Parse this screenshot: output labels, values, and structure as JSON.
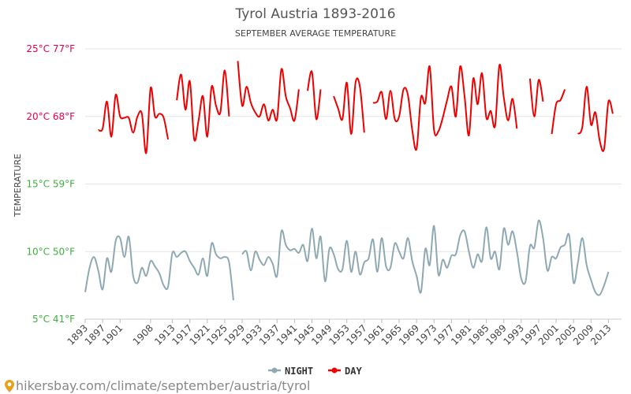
{
  "colors": {
    "night": "#8fa9b3",
    "day": "#ee0000",
    "grid": "#e6e6e6",
    "warm_label": "#e3004f",
    "cool_label": "#3db13d"
  },
  "footer": {
    "text": "hikersbay.com/climate/september/austria/tyrol",
    "icon": "map-pin-icon"
  },
  "chart_data": {
    "type": "line",
    "title": "Tyrol Austria 1893-2016",
    "subtitle": "SEPTEMBER AVERAGE TEMPERATURE",
    "ylabel": "TEMPERATURE",
    "xlabel": "",
    "ylim": [
      5,
      25
    ],
    "xlim": [
      1893,
      2016
    ],
    "grid": true,
    "legend_position": "bottom-center",
    "y_ticks": [
      {
        "value": 25,
        "label": "25°C 77°F",
        "tone": "warm"
      },
      {
        "value": 20,
        "label": "20°C 68°F",
        "tone": "warm"
      },
      {
        "value": 15,
        "label": "15°C 59°F",
        "tone": "cool"
      },
      {
        "value": 10,
        "label": "10°C 50°F",
        "tone": "cool"
      },
      {
        "value": 5,
        "label": "5°C 41°F",
        "tone": "cool"
      }
    ],
    "x_ticks": [
      "1893",
      "1897",
      "1901",
      "1908",
      "1913",
      "1917",
      "1921",
      "1925",
      "1929",
      "1933",
      "1937",
      "1941",
      "1945",
      "1949",
      "1953",
      "1957",
      "1961",
      "1965",
      "1969",
      "1973",
      "1977",
      "1981",
      "1985",
      "1989",
      "1993",
      "1997",
      "2001",
      "2005",
      "2009",
      "2013"
    ],
    "series": [
      {
        "name": "DAY",
        "segments": [
          [
            [
              1896,
              19.0
            ],
            [
              1897,
              19.1
            ],
            [
              1898,
              21.1
            ],
            [
              1899,
              18.5
            ],
            [
              1900,
              21.6
            ],
            [
              1901,
              20.0
            ],
            [
              1902,
              19.9
            ],
            [
              1903,
              19.9
            ],
            [
              1904,
              18.8
            ],
            [
              1905,
              20.0
            ],
            [
              1906,
              20.2
            ],
            [
              1907,
              17.3
            ],
            [
              1908,
              22.1
            ],
            [
              1909,
              20.0
            ],
            [
              1910,
              20.2
            ],
            [
              1911,
              19.9
            ],
            [
              1912,
              18.3
            ]
          ],
          [
            [
              1914,
              21.2
            ],
            [
              1915,
              23.1
            ],
            [
              1916,
              20.5
            ],
            [
              1917,
              22.6
            ],
            [
              1918,
              18.3
            ],
            [
              1919,
              19.7
            ],
            [
              1920,
              21.5
            ],
            [
              1921,
              18.5
            ],
            [
              1922,
              22.2
            ],
            [
              1923,
              20.8
            ],
            [
              1924,
              20.3
            ],
            [
              1925,
              23.4
            ],
            [
              1926,
              20.0
            ]
          ],
          [
            [
              1928,
              24.1
            ],
            [
              1929,
              20.8
            ],
            [
              1930,
              22.2
            ],
            [
              1931,
              21.0
            ],
            [
              1932,
              20.3
            ],
            [
              1933,
              20.0
            ],
            [
              1934,
              20.9
            ],
            [
              1935,
              19.7
            ],
            [
              1936,
              20.5
            ],
            [
              1937,
              19.8
            ],
            [
              1938,
              23.5
            ],
            [
              1939,
              21.5
            ],
            [
              1940,
              20.6
            ],
            [
              1941,
              19.7
            ],
            [
              1942,
              22.0
            ]
          ],
          [
            [
              1944,
              21.9
            ],
            [
              1945,
              23.3
            ],
            [
              1946,
              19.8
            ],
            [
              1947,
              22.0
            ]
          ],
          [
            [
              1950,
              21.5
            ],
            [
              1951,
              20.6
            ],
            [
              1952,
              19.8
            ],
            [
              1953,
              22.5
            ],
            [
              1954,
              18.7
            ],
            [
              1955,
              22.5
            ],
            [
              1956,
              22.2
            ],
            [
              1957,
              18.8
            ]
          ],
          [
            [
              1959,
              21.0
            ],
            [
              1960,
              21.1
            ],
            [
              1961,
              21.8
            ],
            [
              1962,
              19.8
            ],
            [
              1963,
              21.9
            ],
            [
              1964,
              19.8
            ],
            [
              1965,
              20.0
            ],
            [
              1966,
              22.0
            ],
            [
              1967,
              21.6
            ],
            [
              1968,
              19.0
            ],
            [
              1969,
              17.6
            ],
            [
              1970,
              21.4
            ],
            [
              1971,
              21.0
            ],
            [
              1972,
              23.7
            ],
            [
              1973,
              19.0
            ],
            [
              1974,
              18.9
            ],
            [
              1975,
              19.9
            ],
            [
              1976,
              21.2
            ],
            [
              1977,
              22.2
            ],
            [
              1978,
              20.0
            ],
            [
              1979,
              23.7
            ],
            [
              1980,
              21.5
            ],
            [
              1981,
              18.6
            ],
            [
              1982,
              22.8
            ],
            [
              1983,
              20.9
            ],
            [
              1984,
              23.2
            ],
            [
              1985,
              19.9
            ],
            [
              1986,
              20.4
            ],
            [
              1987,
              19.3
            ],
            [
              1988,
              23.8
            ],
            [
              1989,
              21.4
            ],
            [
              1990,
              19.7
            ],
            [
              1991,
              21.3
            ],
            [
              1992,
              19.1
            ]
          ],
          [
            [
              1995,
              22.8
            ],
            [
              1996,
              20.0
            ],
            [
              1997,
              22.7
            ],
            [
              1998,
              21.1
            ]
          ],
          [
            [
              2000,
              18.7
            ],
            [
              2001,
              20.9
            ],
            [
              2002,
              21.2
            ],
            [
              2003,
              22.0
            ]
          ],
          [
            [
              2006,
              18.7
            ],
            [
              2007,
              19.2
            ],
            [
              2008,
              22.2
            ],
            [
              2009,
              19.4
            ],
            [
              2010,
              20.3
            ],
            [
              2011,
              18.2
            ],
            [
              2012,
              17.6
            ],
            [
              2013,
              21.1
            ],
            [
              2014,
              20.2
            ]
          ]
        ]
      },
      {
        "name": "NIGHT",
        "segments": [
          [
            [
              1893,
              7.0
            ],
            [
              1894,
              8.8
            ],
            [
              1895,
              9.6
            ],
            [
              1896,
              8.6
            ],
            [
              1897,
              7.2
            ],
            [
              1898,
              9.5
            ],
            [
              1899,
              8.5
            ],
            [
              1900,
              10.8
            ],
            [
              1901,
              11.0
            ],
            [
              1902,
              9.6
            ],
            [
              1903,
              11.1
            ],
            [
              1904,
              8.2
            ],
            [
              1905,
              7.7
            ],
            [
              1906,
              8.8
            ],
            [
              1907,
              8.2
            ],
            [
              1908,
              9.3
            ],
            [
              1909,
              8.9
            ],
            [
              1910,
              8.4
            ],
            [
              1911,
              7.5
            ],
            [
              1912,
              7.4
            ],
            [
              1913,
              9.9
            ],
            [
              1914,
              9.6
            ],
            [
              1915,
              9.9
            ],
            [
              1916,
              10.0
            ],
            [
              1917,
              9.3
            ],
            [
              1918,
              8.8
            ],
            [
              1919,
              8.3
            ],
            [
              1920,
              9.5
            ],
            [
              1921,
              8.2
            ],
            [
              1922,
              10.6
            ],
            [
              1923,
              9.8
            ],
            [
              1924,
              9.5
            ],
            [
              1925,
              9.6
            ],
            [
              1926,
              9.2
            ],
            [
              1927,
              6.4
            ]
          ],
          [
            [
              1929,
              9.8
            ],
            [
              1930,
              10.0
            ],
            [
              1931,
              8.6
            ],
            [
              1932,
              10.0
            ],
            [
              1933,
              9.4
            ],
            [
              1934,
              9.0
            ],
            [
              1935,
              9.6
            ],
            [
              1936,
              9.1
            ],
            [
              1937,
              8.2
            ],
            [
              1938,
              11.5
            ],
            [
              1939,
              10.5
            ],
            [
              1940,
              10.1
            ],
            [
              1941,
              10.2
            ],
            [
              1942,
              9.9
            ],
            [
              1943,
              10.5
            ],
            [
              1944,
              9.3
            ],
            [
              1945,
              11.7
            ],
            [
              1946,
              9.5
            ],
            [
              1947,
              11.1
            ],
            [
              1948,
              7.8
            ],
            [
              1949,
              10.2
            ],
            [
              1950,
              9.8
            ],
            [
              1951,
              8.7
            ],
            [
              1952,
              8.7
            ],
            [
              1953,
              10.8
            ],
            [
              1954,
              8.5
            ],
            [
              1955,
              10.0
            ],
            [
              1956,
              8.3
            ],
            [
              1957,
              9.2
            ],
            [
              1958,
              9.5
            ],
            [
              1959,
              10.9
            ],
            [
              1960,
              8.5
            ],
            [
              1961,
              11.0
            ],
            [
              1962,
              8.9
            ],
            [
              1963,
              8.8
            ],
            [
              1964,
              10.6
            ],
            [
              1965,
              10.0
            ],
            [
              1966,
              9.5
            ],
            [
              1967,
              11.0
            ],
            [
              1968,
              9.3
            ],
            [
              1969,
              8.2
            ],
            [
              1970,
              7.0
            ],
            [
              1971,
              10.2
            ],
            [
              1972,
              9.0
            ],
            [
              1973,
              11.9
            ],
            [
              1974,
              8.3
            ],
            [
              1975,
              9.4
            ],
            [
              1976,
              8.8
            ],
            [
              1977,
              9.7
            ],
            [
              1978,
              9.8
            ],
            [
              1979,
              11.2
            ],
            [
              1980,
              11.5
            ],
            [
              1981,
              10.0
            ],
            [
              1982,
              8.8
            ],
            [
              1983,
              9.8
            ],
            [
              1984,
              9.3
            ],
            [
              1985,
              11.8
            ],
            [
              1986,
              9.5
            ],
            [
              1987,
              10.0
            ],
            [
              1988,
              8.7
            ],
            [
              1989,
              11.7
            ],
            [
              1990,
              10.5
            ],
            [
              1991,
              11.5
            ],
            [
              1992,
              10.0
            ],
            [
              1993,
              8.0
            ],
            [
              1994,
              7.8
            ],
            [
              1995,
              10.4
            ],
            [
              1996,
              10.3
            ],
            [
              1997,
              12.3
            ],
            [
              1998,
              11.0
            ],
            [
              1999,
              8.6
            ],
            [
              2000,
              9.6
            ],
            [
              2001,
              9.5
            ],
            [
              2002,
              10.3
            ],
            [
              2003,
              10.5
            ],
            [
              2004,
              11.2
            ],
            [
              2005,
              7.7
            ],
            [
              2006,
              9.2
            ],
            [
              2007,
              11.0
            ],
            [
              2008,
              9.0
            ],
            [
              2009,
              7.9
            ],
            [
              2010,
              7.0
            ],
            [
              2011,
              6.8
            ],
            [
              2012,
              7.5
            ],
            [
              2013,
              8.5
            ]
          ]
        ]
      }
    ]
  }
}
